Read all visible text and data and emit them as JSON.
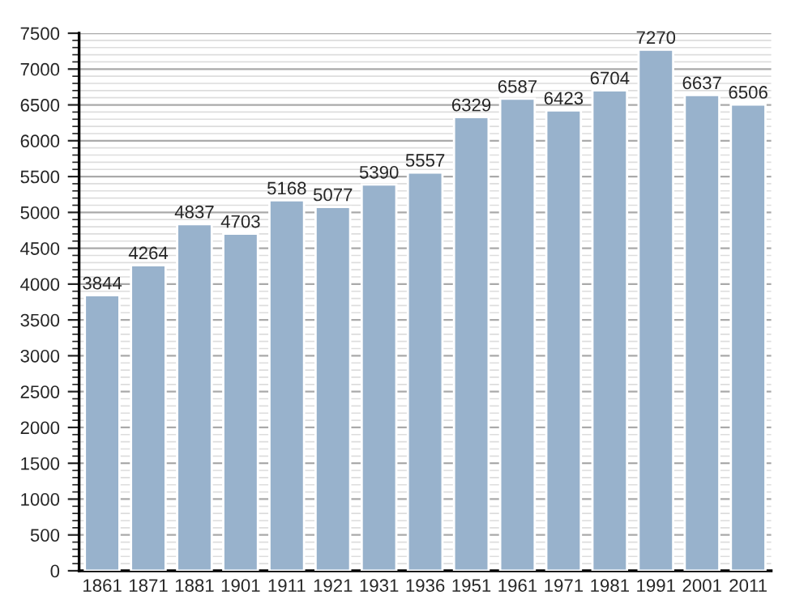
{
  "chart_data": {
    "type": "bar",
    "categories": [
      "1861",
      "1871",
      "1881",
      "1901",
      "1911",
      "1921",
      "1931",
      "1936",
      "1951",
      "1961",
      "1971",
      "1981",
      "1991",
      "2001",
      "2011"
    ],
    "values": [
      3844,
      4264,
      4837,
      4703,
      5168,
      5077,
      5390,
      5557,
      6329,
      6587,
      6423,
      6704,
      7270,
      6637,
      6506
    ],
    "color": "#98b2cc",
    "ylim": [
      0,
      7500
    ],
    "yticks": [
      0,
      500,
      1000,
      1500,
      2000,
      2500,
      3000,
      3500,
      4000,
      4500,
      5000,
      5500,
      6000,
      6500,
      7000,
      7500
    ],
    "grid": "y",
    "data_labels": true
  }
}
